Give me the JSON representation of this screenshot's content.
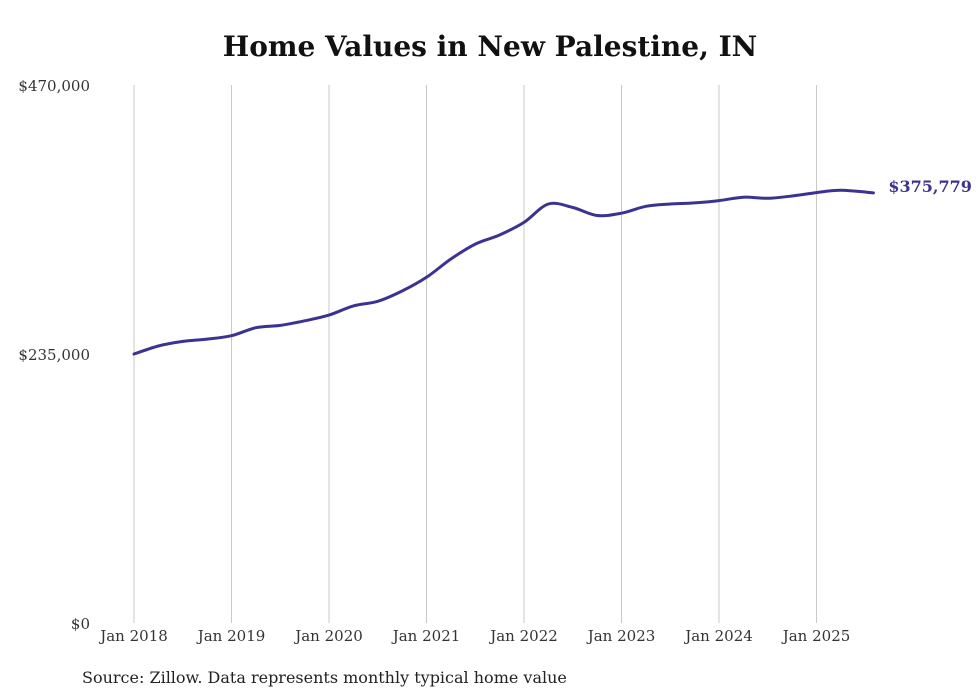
{
  "chart_data": {
    "type": "line",
    "title": "Home Values in New Palestine, IN",
    "xlabel": "",
    "ylabel": "",
    "ylim": [
      0,
      470000
    ],
    "y_ticks": [
      {
        "value": 0,
        "label": "$0"
      },
      {
        "value": 235000,
        "label": "$235,000"
      },
      {
        "value": 470000,
        "label": "$470,000"
      }
    ],
    "x_ticks": [
      "Jan 2018",
      "Jan 2019",
      "Jan 2020",
      "Jan 2021",
      "Jan 2022",
      "Jan 2023",
      "Jan 2024",
      "Jan 2025"
    ],
    "grid": "vertical",
    "line_color": "#3b3391",
    "end_label": "$375,779",
    "series": [
      {
        "x": [
          "2018-01",
          "2018-04",
          "2018-07",
          "2018-10",
          "2019-01",
          "2019-04",
          "2019-07",
          "2019-10",
          "2020-01",
          "2020-04",
          "2020-07",
          "2020-10",
          "2021-01",
          "2021-04",
          "2021-07",
          "2021-10",
          "2022-01",
          "2022-04",
          "2022-07",
          "2022-10",
          "2023-01",
          "2023-04",
          "2023-07",
          "2023-10",
          "2024-01",
          "2024-04",
          "2024-07",
          "2024-10",
          "2025-01",
          "2025-04",
          "2025-08"
        ],
        "values": [
          235000,
          242000,
          246000,
          248000,
          251000,
          258000,
          260000,
          264000,
          269000,
          277000,
          281000,
          290000,
          302000,
          318000,
          331000,
          339000,
          350000,
          366000,
          363000,
          356000,
          358000,
          364000,
          366000,
          367000,
          369000,
          372000,
          371000,
          373000,
          376000,
          378000,
          375779
        ]
      }
    ]
  },
  "source": "Source: Zillow. Data represents monthly typical home value"
}
